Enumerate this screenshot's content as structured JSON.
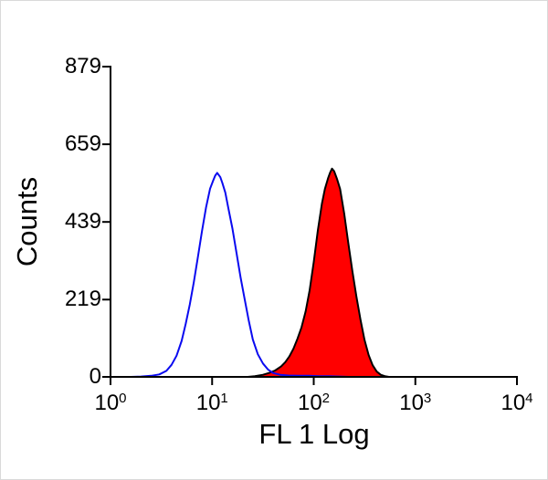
{
  "chart_data": {
    "type": "area",
    "title": "",
    "xlabel": "FL 1 Log",
    "ylabel": "Counts",
    "x_scale": "log10",
    "xlim_log": [
      0,
      4
    ],
    "ylim": [
      0,
      879
    ],
    "x_tick_exponents": [
      0,
      1,
      2,
      3,
      4
    ],
    "y_ticks": [
      0,
      219,
      439,
      659,
      879
    ],
    "grid": false,
    "legend": "none",
    "axis_color": "#000000",
    "series": [
      {
        "name": "stained-sample-filled-histogram",
        "stroke": "#000000",
        "fill": "#ff0000",
        "stroke_width": 2,
        "points": [
          [
            1.35,
            0
          ],
          [
            1.42,
            2
          ],
          [
            1.5,
            6
          ],
          [
            1.56,
            11
          ],
          [
            1.62,
            18
          ],
          [
            1.68,
            30
          ],
          [
            1.72,
            42
          ],
          [
            1.76,
            58
          ],
          [
            1.8,
            80
          ],
          [
            1.84,
            108
          ],
          [
            1.88,
            140
          ],
          [
            1.92,
            185
          ],
          [
            1.96,
            245
          ],
          [
            2.0,
            325
          ],
          [
            2.04,
            415
          ],
          [
            2.08,
            490
          ],
          [
            2.11,
            532
          ],
          [
            2.14,
            562
          ],
          [
            2.16,
            578
          ],
          [
            2.18,
            590
          ],
          [
            2.2,
            583
          ],
          [
            2.23,
            560
          ],
          [
            2.26,
            532
          ],
          [
            2.3,
            462
          ],
          [
            2.34,
            380
          ],
          [
            2.38,
            300
          ],
          [
            2.42,
            228
          ],
          [
            2.46,
            162
          ],
          [
            2.5,
            105
          ],
          [
            2.54,
            62
          ],
          [
            2.58,
            33
          ],
          [
            2.62,
            15
          ],
          [
            2.66,
            6
          ],
          [
            2.7,
            2
          ],
          [
            2.74,
            0
          ]
        ]
      },
      {
        "name": "control-open-histogram",
        "stroke": "#0a0af0",
        "fill": "none",
        "stroke_width": 2,
        "points": [
          [
            0.2,
            0
          ],
          [
            0.3,
            1
          ],
          [
            0.4,
            3
          ],
          [
            0.48,
            7
          ],
          [
            0.55,
            17
          ],
          [
            0.6,
            34
          ],
          [
            0.65,
            60
          ],
          [
            0.7,
            102
          ],
          [
            0.74,
            150
          ],
          [
            0.78,
            205
          ],
          [
            0.82,
            268
          ],
          [
            0.86,
            340
          ],
          [
            0.9,
            412
          ],
          [
            0.94,
            480
          ],
          [
            0.98,
            533
          ],
          [
            1.01,
            556
          ],
          [
            1.03,
            570
          ],
          [
            1.05,
            578
          ],
          [
            1.08,
            566
          ],
          [
            1.1,
            550
          ],
          [
            1.13,
            522
          ],
          [
            1.16,
            478
          ],
          [
            1.2,
            420
          ],
          [
            1.24,
            352
          ],
          [
            1.28,
            282
          ],
          [
            1.32,
            220
          ],
          [
            1.36,
            160
          ],
          [
            1.4,
            106
          ],
          [
            1.45,
            64
          ],
          [
            1.5,
            38
          ],
          [
            1.55,
            21
          ],
          [
            1.6,
            11
          ],
          [
            1.67,
            6
          ],
          [
            1.75,
            4
          ],
          [
            1.85,
            3
          ],
          [
            1.95,
            3
          ],
          [
            2.05,
            2
          ],
          [
            2.15,
            2
          ],
          [
            2.25,
            1
          ],
          [
            2.35,
            0
          ]
        ]
      }
    ]
  },
  "layout_note": "flow cytometry overlay histogram"
}
